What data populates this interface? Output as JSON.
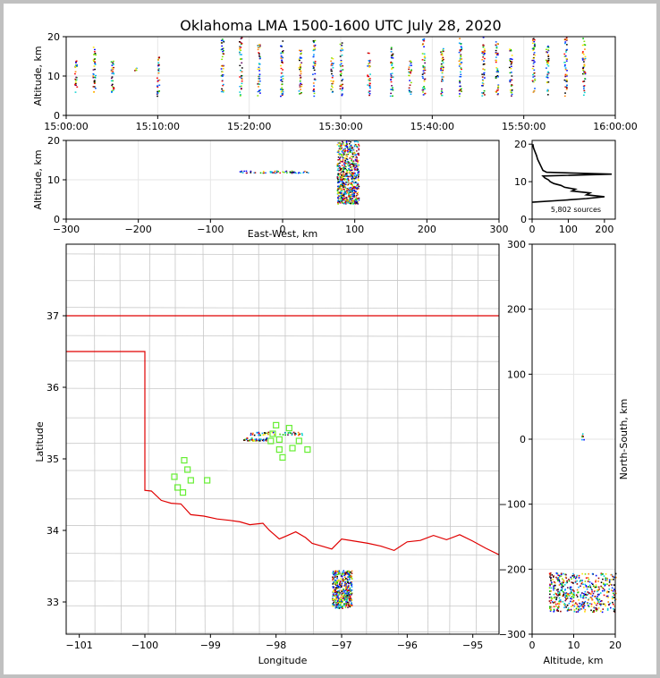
{
  "chart_data": [
    {
      "id": "time_height",
      "type": "scatter",
      "title": "Oklahoma LMA 1500-1600 UTC July 28, 2020",
      "xlabel": "",
      "ylabel": "Altitude, km",
      "xlim": [
        0,
        60
      ],
      "ylim": [
        0,
        20
      ],
      "x_tick_labels": [
        "15:00:00",
        "15:10:00",
        "15:20:00",
        "15:30:00",
        "15:40:00",
        "15:50:00",
        "16:00:00"
      ],
      "y_ticks": [
        0,
        10,
        20
      ],
      "grid": true,
      "points": [
        {
          "t": 1.0,
          "z_min": 6,
          "z_max": 14
        },
        {
          "t": 3.0,
          "z_min": 6,
          "z_max": 18
        },
        {
          "t": 5.0,
          "z_min": 4,
          "z_max": 14
        },
        {
          "t": 7.5,
          "z_min": 11.5,
          "z_max": 12.5
        },
        {
          "t": 10.0,
          "z_min": 5,
          "z_max": 15
        },
        {
          "t": 17.0,
          "z_min": 6,
          "z_max": 20
        },
        {
          "t": 19.0,
          "z_min": 5,
          "z_max": 20
        },
        {
          "t": 21.0,
          "z_min": 5,
          "z_max": 19
        },
        {
          "t": 23.5,
          "z_min": 5,
          "z_max": 20
        },
        {
          "t": 25.5,
          "z_min": 5,
          "z_max": 17
        },
        {
          "t": 27.0,
          "z_min": 5,
          "z_max": 20
        },
        {
          "t": 29.0,
          "z_min": 6,
          "z_max": 15
        },
        {
          "t": 30.0,
          "z_min": 5,
          "z_max": 19
        },
        {
          "t": 33.0,
          "z_min": 5,
          "z_max": 16
        },
        {
          "t": 35.5,
          "z_min": 5,
          "z_max": 18
        },
        {
          "t": 37.5,
          "z_min": 5,
          "z_max": 14
        },
        {
          "t": 39.0,
          "z_min": 5,
          "z_max": 20
        },
        {
          "t": 41.0,
          "z_min": 5,
          "z_max": 18
        },
        {
          "t": 43.0,
          "z_min": 5,
          "z_max": 20
        },
        {
          "t": 45.5,
          "z_min": 5,
          "z_max": 20
        },
        {
          "t": 47.0,
          "z_min": 5,
          "z_max": 19
        },
        {
          "t": 48.5,
          "z_min": 5,
          "z_max": 17
        },
        {
          "t": 51.0,
          "z_min": 5,
          "z_max": 20
        },
        {
          "t": 52.5,
          "z_min": 5,
          "z_max": 18
        },
        {
          "t": 54.5,
          "z_min": 5,
          "z_max": 20
        },
        {
          "t": 56.5,
          "z_min": 5,
          "z_max": 20
        }
      ]
    },
    {
      "id": "ew_height",
      "type": "scatter",
      "xlabel": "East-West, km",
      "ylabel": "Altitude, km",
      "xlim": [
        -300,
        300
      ],
      "ylim": [
        0,
        20
      ],
      "x_ticks": [
        -300,
        -200,
        -100,
        0,
        100,
        200,
        300
      ],
      "y_ticks": [
        0,
        10,
        20
      ],
      "grid": true,
      "clusters": [
        {
          "x_min": -60,
          "x_max": 35,
          "z_min": 11.8,
          "z_max": 12.4
        },
        {
          "x_min": 75,
          "x_max": 105,
          "z_min": 4,
          "z_max": 20
        }
      ]
    },
    {
      "id": "histogram",
      "type": "line",
      "xlabel": "",
      "ylabel": "",
      "xlim": [
        0,
        230
      ],
      "ylim": [
        0,
        21
      ],
      "x_ticks": [
        0,
        100,
        200
      ],
      "y_ticks": [
        0,
        10,
        20
      ],
      "annotation": "5,802 sources",
      "profile": [
        {
          "z": 4.5,
          "n": 0
        },
        {
          "z": 5.0,
          "n": 80
        },
        {
          "z": 5.5,
          "n": 150
        },
        {
          "z": 6.0,
          "n": 200
        },
        {
          "z": 6.5,
          "n": 150
        },
        {
          "z": 7.0,
          "n": 160
        },
        {
          "z": 7.5,
          "n": 110
        },
        {
          "z": 8.0,
          "n": 120
        },
        {
          "z": 8.5,
          "n": 90
        },
        {
          "z": 9.0,
          "n": 80
        },
        {
          "z": 9.5,
          "n": 60
        },
        {
          "z": 10.0,
          "n": 50
        },
        {
          "z": 10.5,
          "n": 45
        },
        {
          "z": 11.0,
          "n": 35
        },
        {
          "z": 11.5,
          "n": 30
        },
        {
          "z": 12.0,
          "n": 220
        },
        {
          "z": 12.5,
          "n": 40
        },
        {
          "z": 13.0,
          "n": 30
        },
        {
          "z": 14.0,
          "n": 25
        },
        {
          "z": 15.0,
          "n": 20
        },
        {
          "z": 16.0,
          "n": 15
        },
        {
          "z": 17.0,
          "n": 12
        },
        {
          "z": 18.0,
          "n": 8
        },
        {
          "z": 19.0,
          "n": 4
        },
        {
          "z": 20.0,
          "n": 2
        }
      ]
    },
    {
      "id": "plan_view",
      "type": "scatter",
      "xlabel": "Longitude",
      "ylabel": "Latitude",
      "xlim": [
        -101.2,
        -94.6
      ],
      "ylim": [
        32.55,
        38.0
      ],
      "x_ticks": [
        -101,
        -100,
        -99,
        -98,
        -97,
        -96,
        -95
      ],
      "y_ticks": [
        33,
        34,
        35,
        36,
        37
      ],
      "stations": [
        [
          -98.0,
          35.47
        ],
        [
          -97.8,
          35.43
        ],
        [
          -98.05,
          35.35
        ],
        [
          -97.95,
          35.27
        ],
        [
          -98.08,
          35.25
        ],
        [
          -97.65,
          35.25
        ],
        [
          -97.75,
          35.15
        ],
        [
          -97.52,
          35.13
        ],
        [
          -97.95,
          35.13
        ],
        [
          -97.9,
          35.02
        ],
        [
          -99.4,
          34.98
        ],
        [
          -99.35,
          34.85
        ],
        [
          -99.55,
          34.75
        ],
        [
          -99.3,
          34.7
        ],
        [
          -99.05,
          34.7
        ],
        [
          -99.5,
          34.6
        ],
        [
          -99.42,
          34.53
        ]
      ],
      "source_clusters": [
        {
          "lon_min": -98.4,
          "lon_max": -97.6,
          "lat_min": 35.34,
          "lat_max": 35.38
        },
        {
          "lon_min": -98.5,
          "lon_max": -98.15,
          "lat_min": 35.26,
          "lat_max": 35.3
        },
        {
          "lon_min": -97.15,
          "lon_max": -96.85,
          "lat_min": 32.92,
          "lat_max": 33.45
        }
      ]
    },
    {
      "id": "ns_height",
      "type": "scatter",
      "xlabel": "Altitude, km",
      "ylabel": "North-South, km",
      "xlim": [
        0,
        20
      ],
      "ylim": [
        -300,
        300
      ],
      "x_ticks": [
        0,
        10,
        20
      ],
      "y_ticks": [
        -300,
        -200,
        -100,
        0,
        100,
        200,
        300
      ],
      "grid": true,
      "clusters": [
        {
          "z_min": 11.8,
          "z_max": 12.4,
          "y_min": 0,
          "y_max": 12
        },
        {
          "z_min": 4,
          "z_max": 20,
          "y_min": -265,
          "y_max": -205
        }
      ]
    }
  ]
}
